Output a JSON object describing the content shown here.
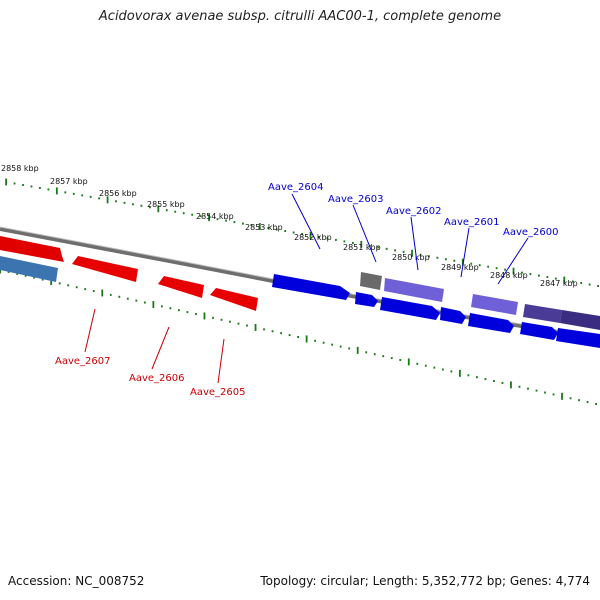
{
  "title": "Acidovorax avenae subsp. citrulli AAC00-1, complete genome",
  "accession": "Accession: NC_008752",
  "topology": "Topology: circular; Length: 5,352,772 bp; Genes: 4,774",
  "colors": {
    "tick": "#1a7a1a",
    "axis": "#808080",
    "forward_strand": "#0000e0",
    "reverse_strand": "#e00000",
    "forward_label": "#0000cc",
    "reverse_label": "#cc0000"
  },
  "kbp_labels": [
    "2858 kbp",
    "2857 kbp",
    "2856 kbp",
    "2855 kbp",
    "2854 kbp",
    "2853 kbp",
    "2852 kbp",
    "2851 kbp",
    "2850 kbp",
    "2849 kbp",
    "2848 kbp",
    "2847 kbp"
  ],
  "genes_forward": [
    "Aave_2604",
    "Aave_2603",
    "Aave_2602",
    "Aave_2601",
    "Aave_2600"
  ],
  "genes_reverse": [
    "Aave_2607",
    "Aave_2606",
    "Aave_2605"
  ]
}
